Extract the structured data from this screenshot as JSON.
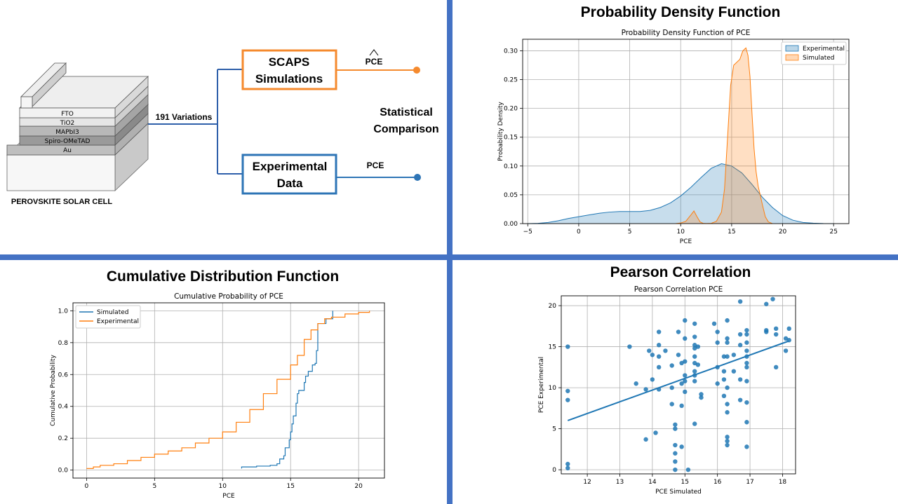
{
  "diagram": {
    "layers": [
      "FTO",
      "TiO2",
      "MAPbI3",
      "Spiro-OMeTAD",
      "Au"
    ],
    "cell_label": "PEROVSKITE SOLAR CELL",
    "variations_label": "191 Variations",
    "scaps_box": [
      "SCAPS",
      "Simulations"
    ],
    "experimental_box": [
      "Experimental",
      "Data"
    ],
    "pce_hat_label": "PCE",
    "pce_label": "PCE",
    "comparison_label": [
      "Statistical",
      "Comparison"
    ],
    "colors": {
      "scaps": "#F58A2E",
      "experimental": "#2E75B6",
      "line": "#2E5FAA"
    }
  },
  "headings": {
    "pdf": "Probability Density Function",
    "cdf": "Cumulative Distribution Function",
    "pearson": "Pearson Correlation"
  },
  "chart_data": [
    {
      "type": "area",
      "title": "Probability Density Function of PCE",
      "xlabel": "PCE",
      "ylabel": "Probability Density",
      "xlim": [
        -5.5,
        26.5
      ],
      "ylim": [
        0,
        0.32
      ],
      "xticks": [
        -5,
        0,
        5,
        10,
        15,
        20,
        25
      ],
      "yticks": [
        0.0,
        0.05,
        0.1,
        0.15,
        0.2,
        0.25,
        0.3
      ],
      "grid": true,
      "legend": "top-right",
      "series": [
        {
          "name": "Experimental",
          "color": "#1f77b4",
          "x": [
            -5,
            -4,
            -3,
            -2,
            -1,
            0,
            1,
            2,
            3,
            4,
            5,
            6,
            7,
            8,
            9,
            10,
            11,
            12,
            13,
            14,
            15,
            16,
            17,
            18,
            19,
            20,
            21,
            22,
            23,
            24,
            25
          ],
          "y": [
            0,
            0.0005,
            0.002,
            0.005,
            0.009,
            0.012,
            0.015,
            0.018,
            0.02,
            0.021,
            0.021,
            0.021,
            0.023,
            0.028,
            0.036,
            0.048,
            0.063,
            0.08,
            0.096,
            0.104,
            0.1,
            0.088,
            0.068,
            0.046,
            0.028,
            0.014,
            0.006,
            0.002,
            0.0008,
            0.0002,
            0
          ]
        },
        {
          "name": "Simulated",
          "color": "#ff7f0e",
          "x": [
            9.5,
            10,
            10.5,
            11,
            11.3,
            11.6,
            11.9,
            12.2,
            12.5,
            13,
            13.5,
            14,
            14.3,
            14.6,
            14.9,
            15.2,
            15.5,
            15.8,
            16.1,
            16.4,
            16.6,
            16.8,
            17.0,
            17.2,
            17.4,
            17.6,
            17.8,
            18.0,
            18.3,
            18.6,
            19.0
          ],
          "y": [
            0,
            0.001,
            0.004,
            0.015,
            0.022,
            0.012,
            0.003,
            0.0005,
            0.0002,
            0.0005,
            0.004,
            0.02,
            0.06,
            0.15,
            0.24,
            0.275,
            0.28,
            0.285,
            0.3,
            0.305,
            0.292,
            0.255,
            0.19,
            0.13,
            0.09,
            0.065,
            0.05,
            0.034,
            0.012,
            0.003,
            0
          ]
        }
      ]
    },
    {
      "type": "line",
      "title": "Cumulative Probability of PCE",
      "xlabel": "PCE",
      "ylabel": "Cumulative Probability",
      "xlim": [
        -1.0,
        21.9
      ],
      "ylim": [
        -0.05,
        1.05
      ],
      "xticks": [
        0,
        5,
        10,
        15,
        20
      ],
      "yticks": [
        0.0,
        0.2,
        0.4,
        0.6,
        0.8,
        1.0
      ],
      "grid": true,
      "legend": "top-left",
      "series": [
        {
          "name": "Simulated",
          "color": "#1f77b4",
          "x": [
            11.4,
            11.4,
            12.5,
            13.5,
            14.0,
            14.2,
            14.5,
            14.6,
            14.9,
            15.0,
            15.1,
            15.2,
            15.4,
            15.5,
            15.6,
            16.0,
            16.1,
            16.3,
            16.6,
            16.8,
            16.9,
            17.0,
            17.0,
            17.6,
            18.1
          ],
          "y": [
            0.01,
            0.02,
            0.025,
            0.03,
            0.04,
            0.07,
            0.09,
            0.14,
            0.19,
            0.24,
            0.29,
            0.34,
            0.42,
            0.48,
            0.5,
            0.55,
            0.59,
            0.62,
            0.66,
            0.67,
            0.75,
            0.85,
            0.92,
            0.95,
            1.0
          ]
        },
        {
          "name": "Experimental",
          "color": "#ff7f0e",
          "x": [
            0,
            0.5,
            1,
            2,
            3,
            4,
            5,
            6,
            7,
            8,
            9,
            10,
            11,
            12,
            13,
            14,
            15,
            15.5,
            16,
            16.5,
            17,
            17.5,
            18,
            19,
            20,
            20.8
          ],
          "y": [
            0.01,
            0.02,
            0.03,
            0.04,
            0.06,
            0.08,
            0.1,
            0.12,
            0.14,
            0.17,
            0.2,
            0.24,
            0.3,
            0.38,
            0.48,
            0.57,
            0.66,
            0.72,
            0.82,
            0.88,
            0.92,
            0.95,
            0.96,
            0.98,
            0.99,
            1.0
          ]
        }
      ]
    },
    {
      "type": "scatter",
      "title": "Pearson Correlation PCE",
      "xlabel": "PCE Simulated",
      "ylabel": "PCE Experimental",
      "xlim": [
        11.2,
        18.4
      ],
      "ylim": [
        -0.5,
        21.2
      ],
      "xticks": [
        12,
        13,
        14,
        15,
        16,
        17,
        18
      ],
      "yticks": [
        0,
        5,
        10,
        15,
        20
      ],
      "grid": true,
      "color": "#1f77b4",
      "points": [
        [
          11.4,
          15.0
        ],
        [
          11.4,
          9.6
        ],
        [
          11.4,
          8.5
        ],
        [
          11.4,
          0.7
        ],
        [
          11.4,
          0.2
        ],
        [
          13.3,
          15.0
        ],
        [
          13.5,
          10.5
        ],
        [
          13.8,
          9.8
        ],
        [
          13.8,
          3.7
        ],
        [
          13.9,
          14.5
        ],
        [
          14.0,
          14.0
        ],
        [
          14.0,
          11.0
        ],
        [
          14.1,
          4.5
        ],
        [
          14.2,
          16.8
        ],
        [
          14.2,
          15.2
        ],
        [
          14.2,
          13.8
        ],
        [
          14.2,
          12.5
        ],
        [
          14.2,
          9.8
        ],
        [
          14.4,
          14.5
        ],
        [
          14.6,
          12.7
        ],
        [
          14.6,
          10.0
        ],
        [
          14.6,
          8.0
        ],
        [
          14.7,
          5.5
        ],
        [
          14.7,
          5.0
        ],
        [
          14.7,
          3.0
        ],
        [
          14.7,
          2.0
        ],
        [
          14.7,
          1.0
        ],
        [
          14.7,
          0.0
        ],
        [
          14.8,
          16.8
        ],
        [
          14.8,
          14.0
        ],
        [
          14.9,
          13.0
        ],
        [
          14.9,
          10.5
        ],
        [
          14.9,
          7.8
        ],
        [
          14.9,
          2.8
        ],
        [
          15.0,
          18.2
        ],
        [
          15.0,
          16.0
        ],
        [
          15.0,
          13.2
        ],
        [
          15.0,
          11.5
        ],
        [
          15.0,
          10.8
        ],
        [
          15.0,
          9.5
        ],
        [
          15.1,
          0.0
        ],
        [
          15.3,
          17.8
        ],
        [
          15.3,
          16.2
        ],
        [
          15.3,
          15.2
        ],
        [
          15.3,
          14.8
        ],
        [
          15.3,
          13.8
        ],
        [
          15.3,
          13.0
        ],
        [
          15.3,
          12.0
        ],
        [
          15.3,
          11.5
        ],
        [
          15.3,
          10.8
        ],
        [
          15.3,
          5.6
        ],
        [
          15.4,
          15.0
        ],
        [
          15.4,
          12.8
        ],
        [
          15.5,
          9.2
        ],
        [
          15.5,
          8.8
        ],
        [
          15.9,
          17.8
        ],
        [
          16.0,
          16.8
        ],
        [
          16.0,
          15.5
        ],
        [
          16.0,
          12.5
        ],
        [
          16.0,
          10.5
        ],
        [
          16.2,
          13.8
        ],
        [
          16.2,
          12.0
        ],
        [
          16.2,
          11.0
        ],
        [
          16.2,
          9.0
        ],
        [
          16.3,
          18.2
        ],
        [
          16.3,
          16.0
        ],
        [
          16.3,
          15.5
        ],
        [
          16.3,
          13.8
        ],
        [
          16.3,
          10.0
        ],
        [
          16.3,
          8.0
        ],
        [
          16.3,
          7.0
        ],
        [
          16.3,
          4.0
        ],
        [
          16.3,
          3.5
        ],
        [
          16.3,
          3.0
        ],
        [
          16.5,
          14.0
        ],
        [
          16.5,
          12.0
        ],
        [
          16.7,
          20.5
        ],
        [
          16.7,
          16.5
        ],
        [
          16.7,
          15.2
        ],
        [
          16.7,
          11.0
        ],
        [
          16.7,
          8.5
        ],
        [
          16.9,
          17.0
        ],
        [
          16.9,
          16.5
        ],
        [
          16.9,
          15.5
        ],
        [
          16.9,
          14.5
        ],
        [
          16.9,
          13.8
        ],
        [
          16.9,
          13.0
        ],
        [
          16.9,
          12.5
        ],
        [
          16.9,
          10.8
        ],
        [
          16.9,
          8.2
        ],
        [
          16.9,
          5.8
        ],
        [
          16.9,
          2.8
        ],
        [
          17.5,
          20.2
        ],
        [
          17.5,
          17.0
        ],
        [
          17.5,
          16.8
        ],
        [
          17.7,
          20.8
        ],
        [
          17.8,
          17.2
        ],
        [
          17.8,
          16.5
        ],
        [
          17.8,
          12.5
        ],
        [
          18.1,
          14.5
        ],
        [
          18.1,
          16.0
        ],
        [
          18.2,
          17.2
        ],
        [
          18.2,
          15.8
        ]
      ],
      "fit": {
        "x": [
          11.4,
          18.2
        ],
        "y": [
          6.0,
          15.7
        ]
      }
    }
  ]
}
